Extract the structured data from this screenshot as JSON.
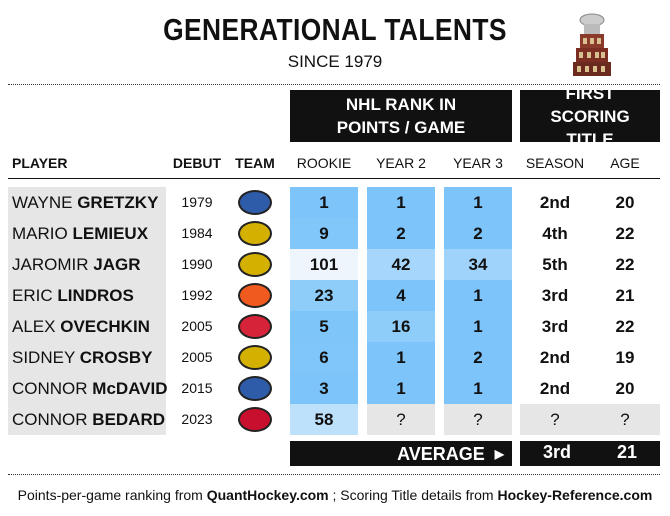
{
  "title": "GENERATIONAL TALENTS",
  "subtitle": "SINCE 1979",
  "trophy_icon": "art-ross-trophy",
  "group_headers": {
    "nhl_rank": "NHL RANK IN POINTS / GAME",
    "first_title": "FIRST SCORING TITLE"
  },
  "columns": {
    "player": "PLAYER",
    "debut": "DEBUT",
    "team": "TEAM",
    "rookie": "ROOKIE",
    "year2": "YEAR 2",
    "year3": "YEAR 3",
    "season": "SEASON",
    "age": "AGE"
  },
  "rows": [
    {
      "first": "WAYNE",
      "last": "GRETZKY",
      "debut": "1979",
      "team": "Oilers",
      "team_color": "#2e5ca8",
      "rookie": "1",
      "year2": "1",
      "year3": "1",
      "season": "2nd",
      "age": "20",
      "colors": [
        "#7cc4fa",
        "#7cc4fa",
        "#7cc4fa"
      ]
    },
    {
      "first": "MARIO",
      "last": "LEMIEUX",
      "debut": "1984",
      "team": "Penguins",
      "team_color": "#d4b000",
      "rookie": "9",
      "year2": "2",
      "year3": "2",
      "season": "4th",
      "age": "22",
      "colors": [
        "#82c7fa",
        "#7cc4fa",
        "#7cc4fa"
      ]
    },
    {
      "first": "JAROMIR",
      "last": "JAGR",
      "debut": "1990",
      "team": "Penguins",
      "team_color": "#d4b000",
      "rookie": "101",
      "year2": "42",
      "year3": "34",
      "season": "5th",
      "age": "22",
      "colors": [
        "#eef5fd",
        "#a6d6fb",
        "#9fd3fb"
      ]
    },
    {
      "first": "ERIC",
      "last": "LINDROS",
      "debut": "1992",
      "team": "Flyers",
      "team_color": "#f05a1e",
      "rookie": "23",
      "year2": "4",
      "year3": "1",
      "season": "3rd",
      "age": "21",
      "colors": [
        "#8ecdfa",
        "#7cc4fa",
        "#7cc4fa"
      ]
    },
    {
      "first": "ALEX",
      "last": "OVECHKIN",
      "debut": "2005",
      "team": "Capitals",
      "team_color": "#d6233a",
      "rookie": "5",
      "year2": "16",
      "year3": "1",
      "season": "3rd",
      "age": "22",
      "colors": [
        "#7ec5fa",
        "#8ecdfa",
        "#7cc4fa"
      ]
    },
    {
      "first": "SIDNEY",
      "last": "CROSBY",
      "debut": "2005",
      "team": "Penguins",
      "team_color": "#d4b000",
      "rookie": "6",
      "year2": "1",
      "year3": "2",
      "season": "2nd",
      "age": "19",
      "colors": [
        "#80c6fa",
        "#7cc4fa",
        "#7cc4fa"
      ]
    },
    {
      "first": "CONNOR",
      "last": "McDAVID",
      "debut": "2015",
      "team": "Oilers",
      "team_color": "#2e5ca8",
      "rookie": "3",
      "year2": "1",
      "year3": "1",
      "season": "2nd",
      "age": "20",
      "colors": [
        "#7cc4fa",
        "#7cc4fa",
        "#7cc4fa"
      ]
    },
    {
      "first": "CONNOR",
      "last": "BEDARD",
      "debut": "2023",
      "team": "Blackhawks",
      "team_color": "#c8102e",
      "rookie": "58",
      "year2": "?",
      "year3": "?",
      "season": "?",
      "age": "?",
      "colors": [
        "#bde0fb",
        "#e6e6e6",
        "#e6e6e6"
      ]
    }
  ],
  "average": {
    "label": "AVERAGE",
    "season": "3rd",
    "age": "21"
  },
  "credits": {
    "pre": "Points-per-game ranking from ",
    "src1": "QuantHockey.com",
    "mid": " ; Scoring Title details from ",
    "src2": "Hockey-Reference.com"
  }
}
